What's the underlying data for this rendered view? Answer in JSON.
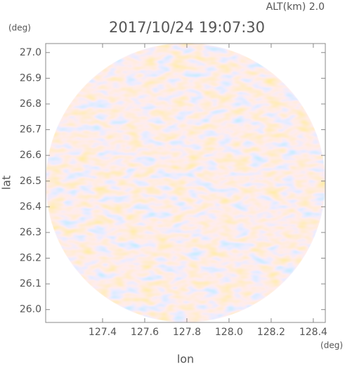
{
  "chart_data": {
    "type": "ppi",
    "title": "2017/10/24 19:07:30",
    "altitude_label": "ALT(km) 2.0",
    "x_label": "lon",
    "y_label": "lat",
    "x_unit": "(deg)",
    "y_unit": "(deg)",
    "xlim": [
      127.13,
      128.457
    ],
    "ylim": [
      25.95,
      27.035
    ],
    "xticks": [
      127.4,
      127.6,
      127.8,
      {
        "value": 128,
        "label": "128.0"
      },
      128.2,
      128.4
    ],
    "yticks": [
      {
        "value": 26,
        "label": "26.0"
      },
      26.1,
      26.2,
      26.3,
      26.4,
      26.5,
      26.6,
      26.7,
      26.8,
      26.9,
      {
        "value": 27,
        "label": "27.0"
      }
    ]
  }
}
